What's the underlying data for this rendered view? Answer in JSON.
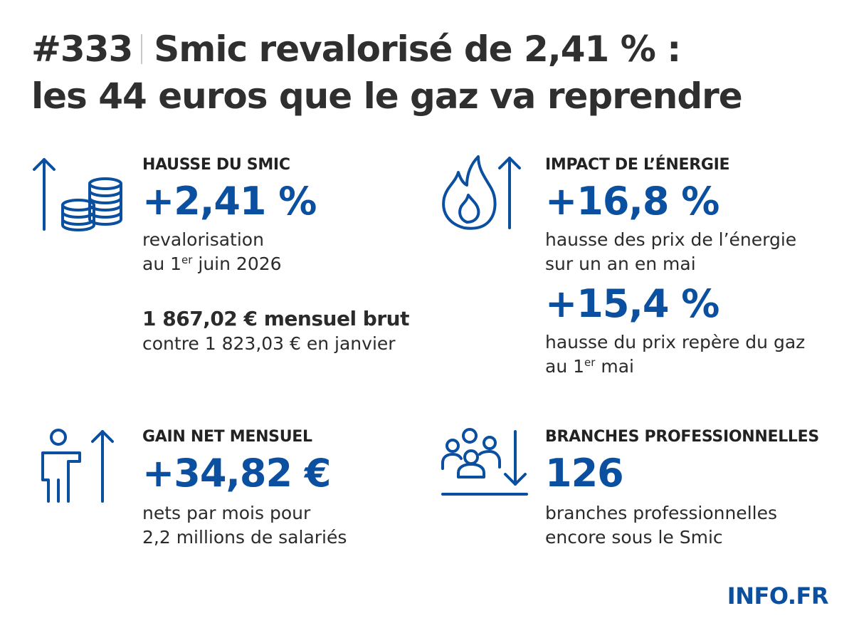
{
  "header": {
    "number": "#333",
    "title_line1": "Smic revalorisé de 2,41 % :",
    "title_line2": "les 44 euros que le gaz va reprendre"
  },
  "smic": {
    "label": "HAUSSE DU SMIC",
    "value": "+2,41 %",
    "desc_line1": "revalorisation",
    "desc_line2_pre": "au 1",
    "desc_line2_sup": "er",
    "desc_line2_post": " juin 2026",
    "amount": "1 867,02 € mensuel brut",
    "amount_compare": "contre 1 823,03 € en janvier"
  },
  "energy": {
    "label": "IMPACT DE L’ÉNERGIE",
    "value1": "+16,8 %",
    "desc1_line1": "hausse des prix de l’énergie",
    "desc1_line2": "sur un an en mai",
    "value2": "+15,4 %",
    "desc2_line1": "hausse du prix repère du gaz",
    "desc2_line2_pre": "au 1",
    "desc2_line2_sup": "er",
    "desc2_line2_post": " mai"
  },
  "gain": {
    "label": "GAIN NET MENSUEL",
    "value": "+34,82 €",
    "desc_line1": "nets par mois pour",
    "desc_line2": "2,2 millions de salariés"
  },
  "branches": {
    "label": "BRANCHES PROFESSIONNELLES",
    "value": "126",
    "desc_line1": "branches professionnelles",
    "desc_line2": "encore sous le Smic"
  },
  "brand": "INFO.FR",
  "colors": {
    "accent": "#0a4fa0",
    "text": "#2b2b2b"
  },
  "icons": [
    "arrow-up-coins-icon",
    "flame-arrow-up-icon",
    "person-arrow-up-icon",
    "group-arrow-down-icon"
  ]
}
